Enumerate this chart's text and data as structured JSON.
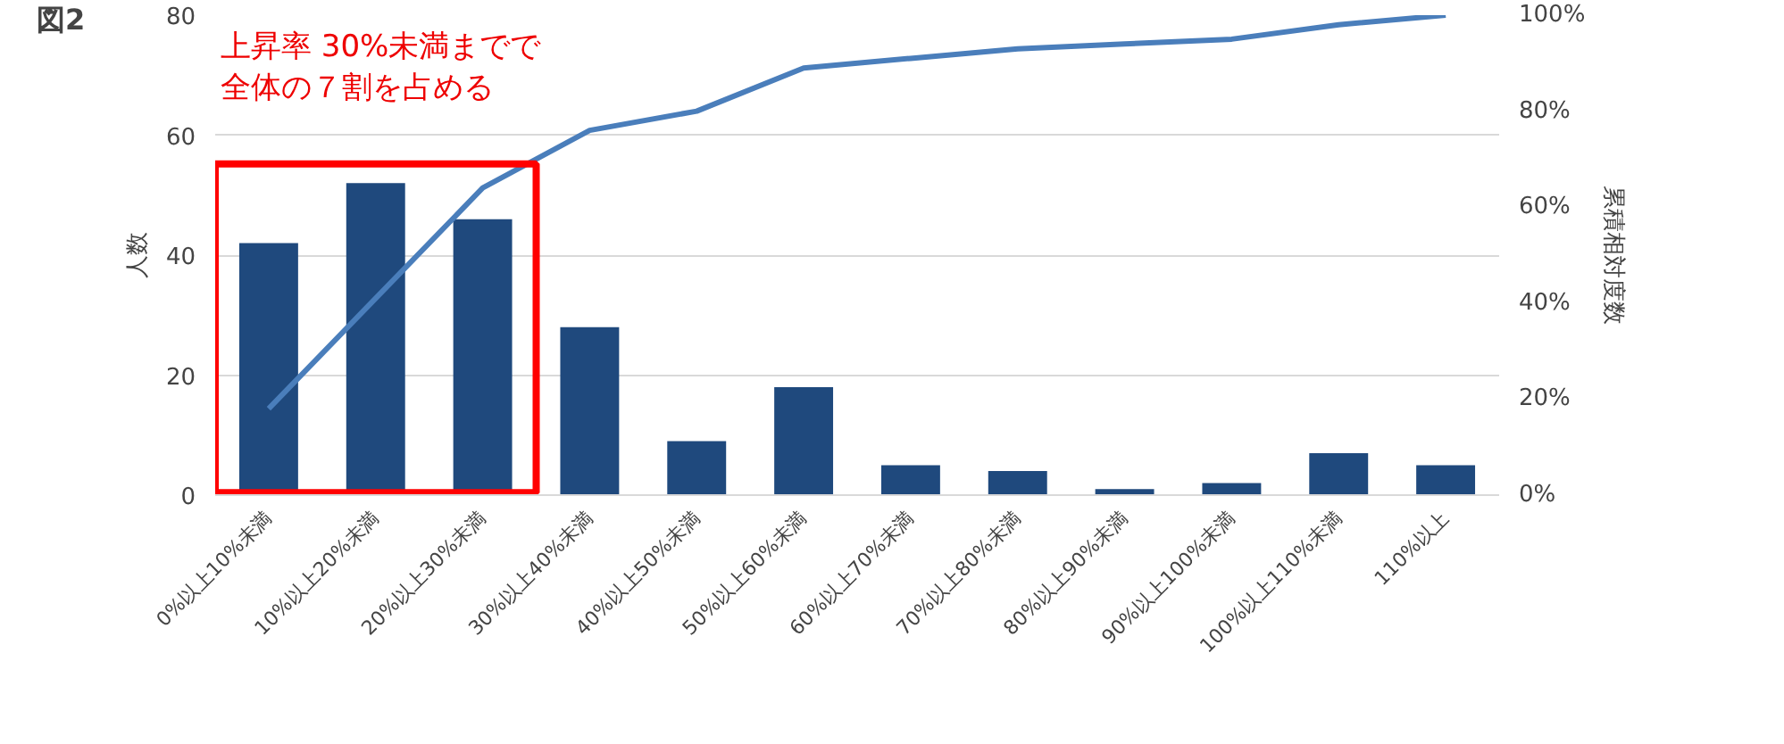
{
  "chart_data": {
    "type": "bar",
    "title": "図2",
    "ylabel": "人数",
    "y2label": "累積相対度数",
    "categories": [
      "0%以上10%未満",
      "10%以上20%未満",
      "20%以上30%未満",
      "30%以上40%未満",
      "40%以上50%未満",
      "50%以上60%未満",
      "60%以上70%未満",
      "70%以上80%未満",
      "80%以上90%未満",
      "90%以上100%未満",
      "100%以上110%未満",
      "110%以上"
    ],
    "series": [
      {
        "color": "#1f497d",
        "values": [
          42,
          52,
          46,
          28,
          9,
          18,
          5,
          4,
          1,
          2,
          7,
          5
        ]
      },
      {
        "type": "line",
        "axis": "y2",
        "color": "#4a7ebb",
        "values": [
          18,
          41,
          64,
          76,
          80,
          89,
          91,
          93,
          94,
          95,
          98,
          100
        ]
      }
    ],
    "ylim": [
      0,
      80
    ],
    "yticks": [
      0,
      20,
      40,
      60,
      80
    ],
    "y2lim": [
      0,
      100
    ],
    "y2ticks": [
      {
        "value": 0,
        "label": "0%"
      },
      {
        "value": 20,
        "label": "20%"
      },
      {
        "value": 40,
        "label": "40%"
      },
      {
        "value": 60,
        "label": "60%"
      },
      {
        "value": 80,
        "label": "80%"
      },
      {
        "value": 100,
        "label": "100%"
      }
    ],
    "annotations": [
      "上昇率 30%未満までで",
      "全体の７割を占める"
    ],
    "grid": "y",
    "line_style": "solid"
  }
}
